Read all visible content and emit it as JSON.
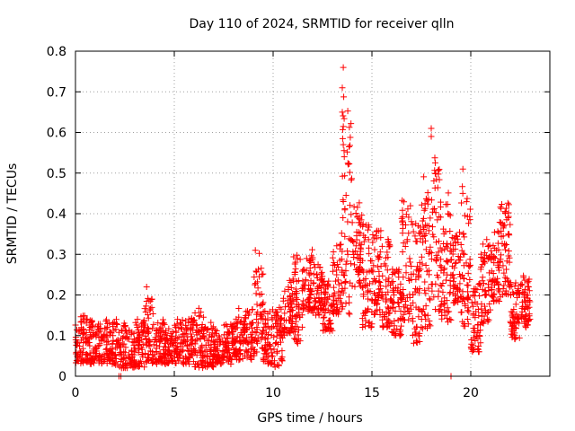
{
  "chart_data": {
    "type": "scatter",
    "title": "Day 110 of 2024, SRMTID for receiver qlln",
    "xlabel": "GPS time / hours",
    "ylabel": "SRMTID / TECUs",
    "xlim": [
      0,
      24
    ],
    "ylim": [
      0,
      0.8
    ],
    "xticks": [
      0,
      5,
      10,
      15,
      20
    ],
    "yticks": [
      0,
      0.1,
      0.2,
      0.3,
      0.4,
      0.5,
      0.6,
      0.7,
      0.8
    ],
    "ytick_labels": [
      "0",
      "0.1",
      "0.2",
      "0.3",
      "0.4",
      "0.5",
      "0.6",
      "0.7",
      "0.8"
    ],
    "xtick_labels": [
      "0",
      "5",
      "10",
      "15",
      "20"
    ],
    "grid": true,
    "marker": "plus",
    "color": "#ff0000",
    "series": [
      {
        "name": "SRMTID",
        "envelope_by_hour": [
          {
            "t": 0.0,
            "min": 0.03,
            "max": 0.17
          },
          {
            "t": 0.5,
            "min": 0.03,
            "max": 0.16
          },
          {
            "t": 1.0,
            "min": 0.03,
            "max": 0.15
          },
          {
            "t": 1.5,
            "min": 0.03,
            "max": 0.16
          },
          {
            "t": 2.0,
            "min": 0.02,
            "max": 0.15
          },
          {
            "t": 2.5,
            "min": 0.02,
            "max": 0.13
          },
          {
            "t": 3.0,
            "min": 0.02,
            "max": 0.16
          },
          {
            "t": 3.5,
            "min": 0.03,
            "max": 0.22
          },
          {
            "t": 4.0,
            "min": 0.03,
            "max": 0.15
          },
          {
            "t": 4.5,
            "min": 0.03,
            "max": 0.14
          },
          {
            "t": 5.0,
            "min": 0.03,
            "max": 0.16
          },
          {
            "t": 5.5,
            "min": 0.03,
            "max": 0.17
          },
          {
            "t": 6.0,
            "min": 0.02,
            "max": 0.22
          },
          {
            "t": 6.5,
            "min": 0.02,
            "max": 0.14
          },
          {
            "t": 7.0,
            "min": 0.03,
            "max": 0.13
          },
          {
            "t": 7.5,
            "min": 0.03,
            "max": 0.15
          },
          {
            "t": 8.0,
            "min": 0.04,
            "max": 0.17
          },
          {
            "t": 8.5,
            "min": 0.04,
            "max": 0.19
          },
          {
            "t": 9.0,
            "min": 0.05,
            "max": 0.31
          },
          {
            "t": 9.5,
            "min": 0.03,
            "max": 0.19
          },
          {
            "t": 10.0,
            "min": 0.02,
            "max": 0.2
          },
          {
            "t": 10.5,
            "min": 0.1,
            "max": 0.26
          },
          {
            "t": 11.0,
            "min": 0.08,
            "max": 0.34
          },
          {
            "t": 11.5,
            "min": 0.16,
            "max": 0.33
          },
          {
            "t": 12.0,
            "min": 0.15,
            "max": 0.3
          },
          {
            "t": 12.5,
            "min": 0.11,
            "max": 0.26
          },
          {
            "t": 13.0,
            "min": 0.15,
            "max": 0.36
          },
          {
            "t": 13.5,
            "min": 0.15,
            "max": 0.76
          },
          {
            "t": 14.0,
            "min": 0.22,
            "max": 0.47
          },
          {
            "t": 14.5,
            "min": 0.12,
            "max": 0.42
          },
          {
            "t": 15.0,
            "min": 0.15,
            "max": 0.4
          },
          {
            "t": 15.5,
            "min": 0.12,
            "max": 0.39
          },
          {
            "t": 16.0,
            "min": 0.1,
            "max": 0.3
          },
          {
            "t": 16.5,
            "min": 0.13,
            "max": 0.5
          },
          {
            "t": 17.0,
            "min": 0.08,
            "max": 0.44
          },
          {
            "t": 17.5,
            "min": 0.11,
            "max": 0.52
          },
          {
            "t": 18.0,
            "min": 0.16,
            "max": 0.61
          },
          {
            "t": 18.5,
            "min": 0.13,
            "max": 0.48
          },
          {
            "t": 19.0,
            "min": 0.18,
            "max": 0.38
          },
          {
            "t": 19.5,
            "min": 0.12,
            "max": 0.51
          },
          {
            "t": 20.0,
            "min": 0.06,
            "max": 0.27
          },
          {
            "t": 20.5,
            "min": 0.13,
            "max": 0.37
          },
          {
            "t": 21.0,
            "min": 0.18,
            "max": 0.39
          },
          {
            "t": 21.5,
            "min": 0.2,
            "max": 0.47
          },
          {
            "t": 22.0,
            "min": 0.09,
            "max": 0.26
          },
          {
            "t": 22.5,
            "min": 0.12,
            "max": 0.26
          }
        ],
        "notable_points": [
          {
            "x": 13.55,
            "y": 0.76
          },
          {
            "x": 13.5,
            "y": 0.71
          },
          {
            "x": 13.5,
            "y": 0.65
          },
          {
            "x": 13.55,
            "y": 0.57
          },
          {
            "x": 13.6,
            "y": 0.54
          },
          {
            "x": 18.0,
            "y": 0.61
          },
          {
            "x": 18.0,
            "y": 0.59
          },
          {
            "x": 19.6,
            "y": 0.51
          },
          {
            "x": 9.1,
            "y": 0.31
          },
          {
            "x": 3.6,
            "y": 0.22
          }
        ],
        "zero_points": [
          {
            "x": 2.2,
            "y": 0.0
          },
          {
            "x": 2.3,
            "y": 0.0
          },
          {
            "x": 19.0,
            "y": 0.0
          }
        ]
      }
    ]
  }
}
